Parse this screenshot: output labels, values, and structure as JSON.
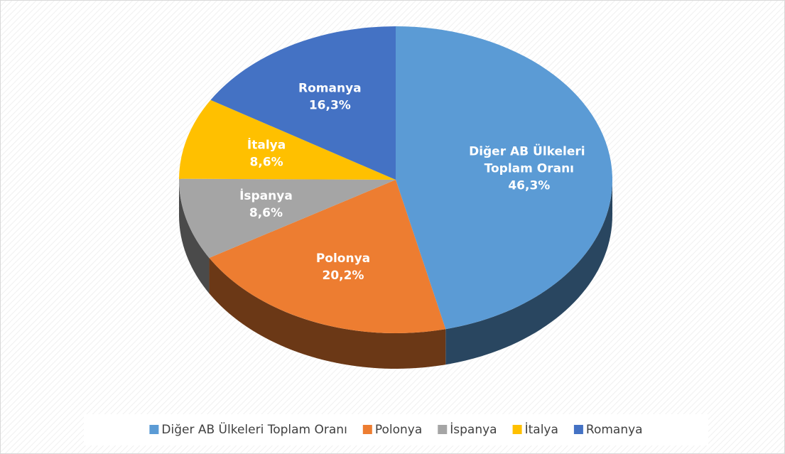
{
  "chart_data": {
    "type": "pie",
    "categories": [
      "Diğer AB Ülkeleri Toplam Oranı",
      "Polonya",
      "İspanya",
      "İtalya",
      "Romanya"
    ],
    "values": [
      46.3,
      20.2,
      8.6,
      8.6,
      16.3
    ],
    "value_labels": [
      "46,3%",
      "20,2%",
      "8,6%",
      "8,6%",
      "16,3%"
    ],
    "colors": [
      "#5b9bd5",
      "#ed7d31",
      "#a5a5a5",
      "#ffc000",
      "#4472c4"
    ],
    "legend": "bottom"
  }
}
